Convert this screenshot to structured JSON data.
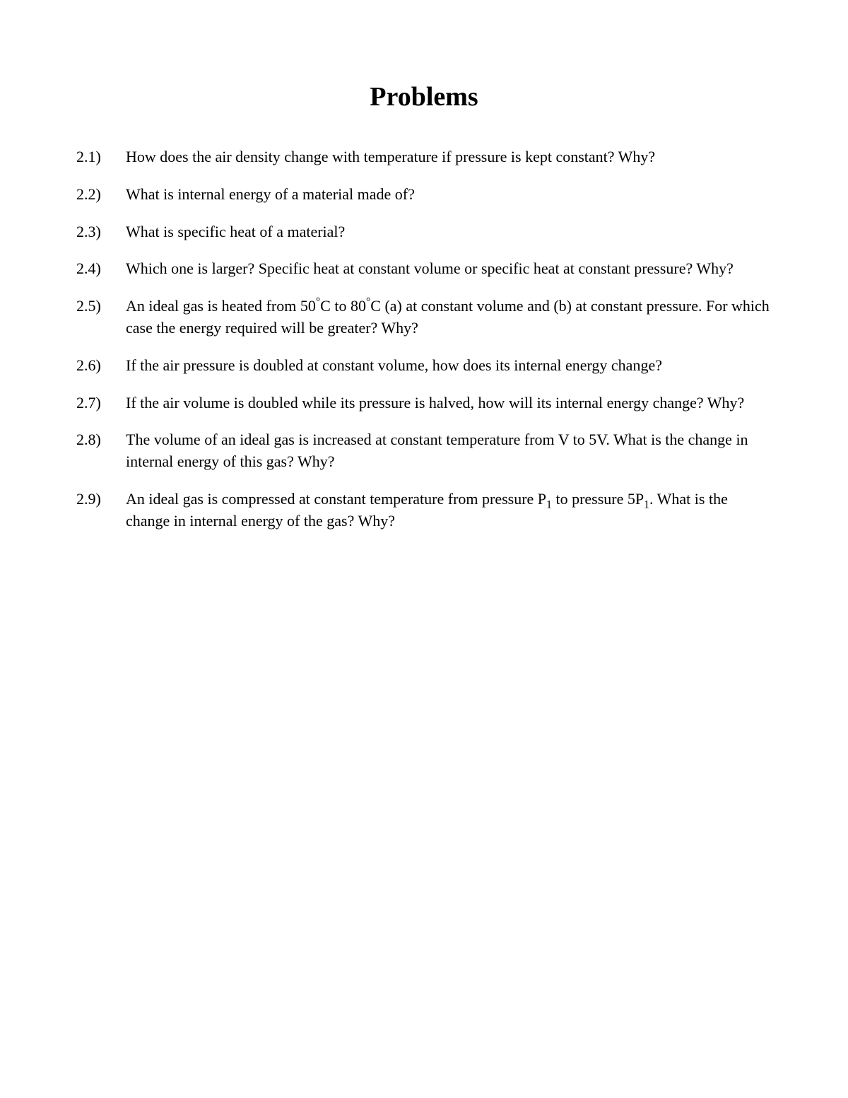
{
  "page": {
    "title": "Problems",
    "background_color": "#ffffff",
    "text_color": "#000000",
    "font_family": "Times New Roman",
    "title_fontsize": 38,
    "body_fontsize": 22
  },
  "problems": [
    {
      "number": "2.1)",
      "text": "How does the air density change with temperature if pressure is kept constant? Why?"
    },
    {
      "number": "2.2)",
      "text": "What is internal energy of a material made of?"
    },
    {
      "number": "2.3)",
      "text": "What is specific heat of a material?"
    },
    {
      "number": "2.4)",
      "text": "Which one is larger? Specific heat at constant volume or specific heat at constant pressure? Why?"
    },
    {
      "number": "2.5)",
      "text_html": "An ideal gas is heated from 50<sup>°</sup>C to 80<sup>°</sup>C (a) at constant volume and (b) at constant pressure. For which case the energy required will be greater? Why?"
    },
    {
      "number": "2.6)",
      "text": "If the air pressure is doubled at constant volume, how does its internal energy change?"
    },
    {
      "number": "2.7)",
      "text": "If the air volume is doubled while its pressure is halved, how will its internal energy change? Why?"
    },
    {
      "number": "2.8)",
      "text": "The volume of an ideal gas is increased at constant temperature from V to 5V. What is the change in internal energy of this gas? Why?"
    },
    {
      "number": "2.9)",
      "text_html": "An ideal gas is compressed at constant temperature from pressure P<sub>1</sub> to pressure 5P<sub>1</sub>. What is the change in internal energy of the gas? Why?"
    }
  ]
}
